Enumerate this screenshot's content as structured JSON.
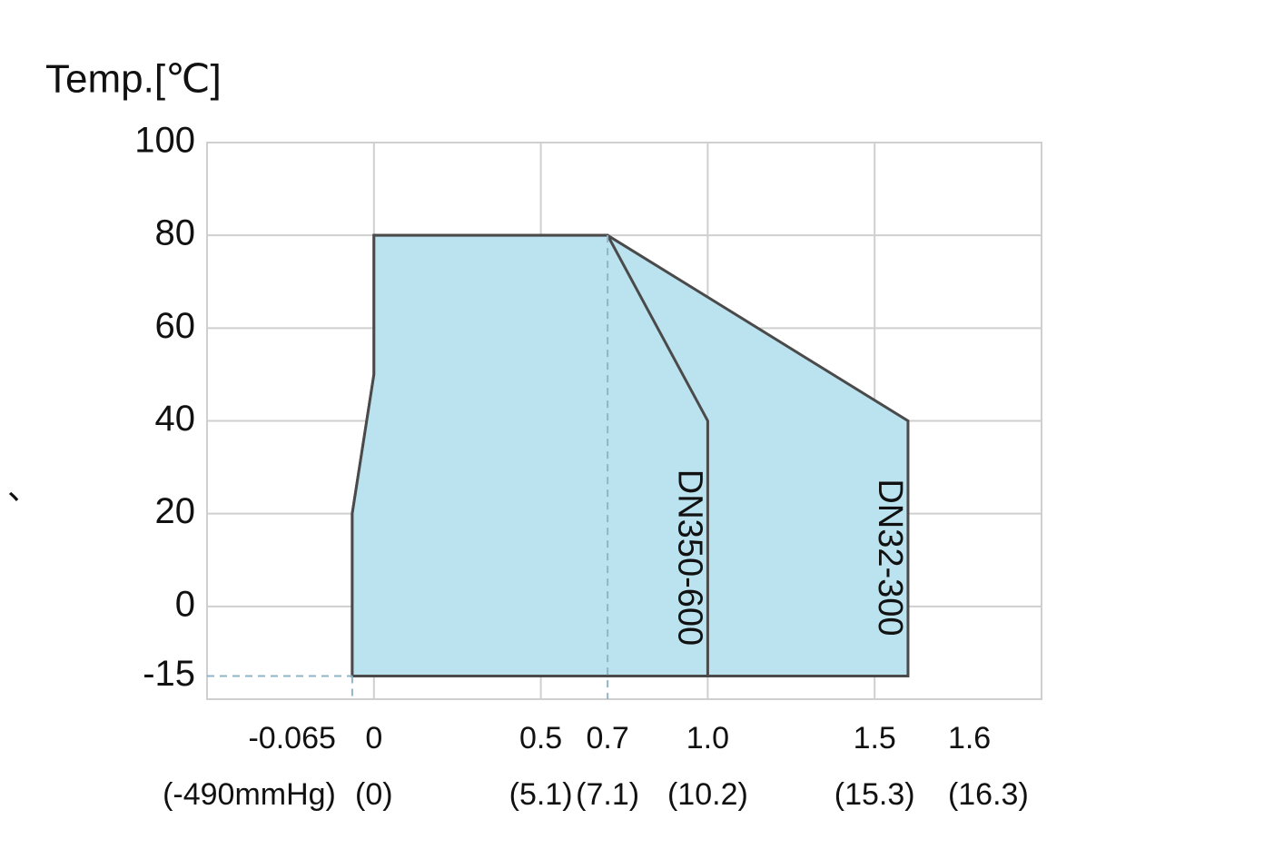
{
  "chart_data": {
    "type": "area",
    "y_label": "Temp.[℃]",
    "annotations": [
      "、"
    ],
    "xlim": [
      -0.5,
      2.0
    ],
    "ylim": [
      -20,
      100
    ],
    "xticks": [
      -0.065,
      0,
      0.5,
      0.7,
      {
        "value": 1,
        "label": "1.0"
      },
      1.5,
      1.6
    ],
    "xtick_secondary_labels": [
      "(-490mmHg)",
      "(0)",
      "(5.1)",
      "(7.1)",
      "(10.2)",
      "(15.3)",
      "(16.3)"
    ],
    "yticks": [
      -15,
      0,
      20,
      40,
      60,
      80,
      100
    ],
    "xgrid": [
      0,
      0.5,
      1,
      1.5
    ],
    "ygrid": [
      0,
      20,
      40,
      60,
      80
    ],
    "color": "#bbe2ef",
    "series": [
      {
        "name": "DN32-300",
        "x": [
          -0.065,
          -0.065,
          0,
          0,
          0.7,
          1.6,
          1.6
        ],
        "values": [
          -15,
          20,
          50,
          80,
          80,
          40,
          -15
        ]
      },
      {
        "name": "DN350-600",
        "x": [
          -0.065,
          -0.065,
          0,
          0,
          0.7,
          1,
          1
        ],
        "values": [
          -15,
          20,
          50,
          80,
          80,
          40,
          -15
        ]
      }
    ]
  }
}
